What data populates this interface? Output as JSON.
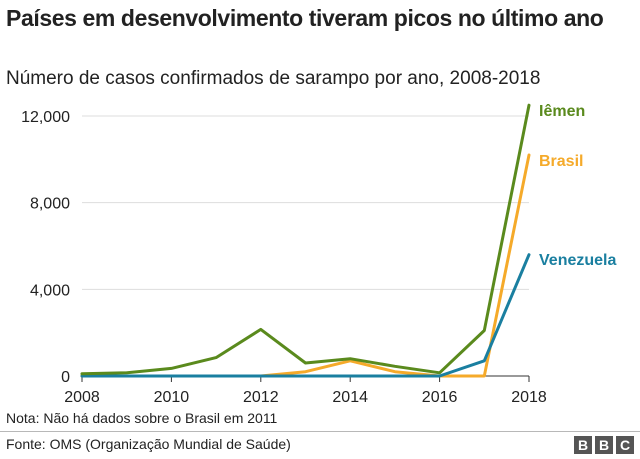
{
  "header": {
    "title": "Países em desenvolvimento tiveram picos no último ano",
    "subtitle": "Número de casos confirmados de sarampo por ano, 2008-2018"
  },
  "footer": {
    "note": "Nota: Não há dados sobre o Brasil em 2011",
    "source": "Fonte: OMS (Organização Mundial de Saúde)",
    "logo_letters": [
      "B",
      "B",
      "C"
    ]
  },
  "chart_data": {
    "type": "line",
    "x": [
      2008,
      2009,
      2010,
      2011,
      2012,
      2013,
      2014,
      2015,
      2016,
      2017,
      2018
    ],
    "xlim": [
      2008,
      2018
    ],
    "ylim": [
      0,
      12000
    ],
    "x_ticks": [
      2008,
      2010,
      2012,
      2014,
      2016,
      2018
    ],
    "y_ticks": [
      0,
      4000,
      8000,
      12000
    ],
    "y_tick_labels": [
      "0",
      "4,000",
      "8,000",
      "12,000"
    ],
    "grid": "horizontal",
    "legend": "inline labels at line ends",
    "series": [
      {
        "name": "Iêmen",
        "color": "#5a8a1d",
        "values": [
          100,
          150,
          350,
          850,
          2150,
          600,
          800,
          450,
          150,
          2100,
          12500
        ]
      },
      {
        "name": "Brasil",
        "color": "#f5aa2a",
        "values": [
          0,
          0,
          0,
          null,
          0,
          200,
          700,
          200,
          0,
          0,
          10200
        ]
      },
      {
        "name": "Venezuela",
        "color": "#1a7fa0",
        "values": [
          0,
          0,
          0,
          0,
          0,
          0,
          0,
          0,
          0,
          700,
          5600
        ]
      }
    ]
  }
}
